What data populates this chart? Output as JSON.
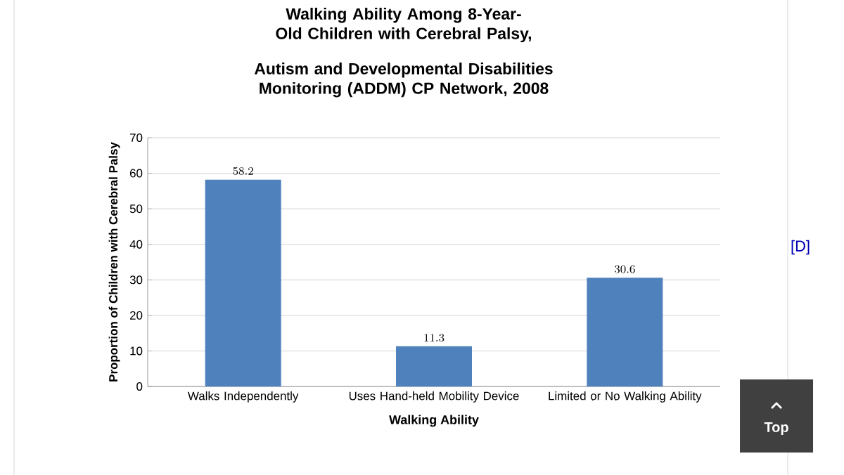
{
  "chart_data": {
    "type": "bar",
    "title": "Walking Ability Among 8-Year-Old Children with Cerebral Palsy,",
    "subtitle": "Autism and Developmental Disabilities Monitoring (ADDM) CP Network, 2008",
    "xlabel": "Walking Ability",
    "ylabel": "Proportion of Children with Cerebral Palsy",
    "categories": [
      "Walks Independently",
      "Uses Hand-held Mobility Device",
      "Limited or No Walking Ability"
    ],
    "values": [
      58.2,
      11.3,
      30.6
    ],
    "color": "#4f81bd",
    "ylim": [
      0,
      70
    ],
    "yticks": [
      0,
      10,
      20,
      30,
      40,
      50,
      60,
      70
    ],
    "grid": "y",
    "data_labels": true,
    "annotations": [
      "[D]",
      "Top"
    ]
  }
}
